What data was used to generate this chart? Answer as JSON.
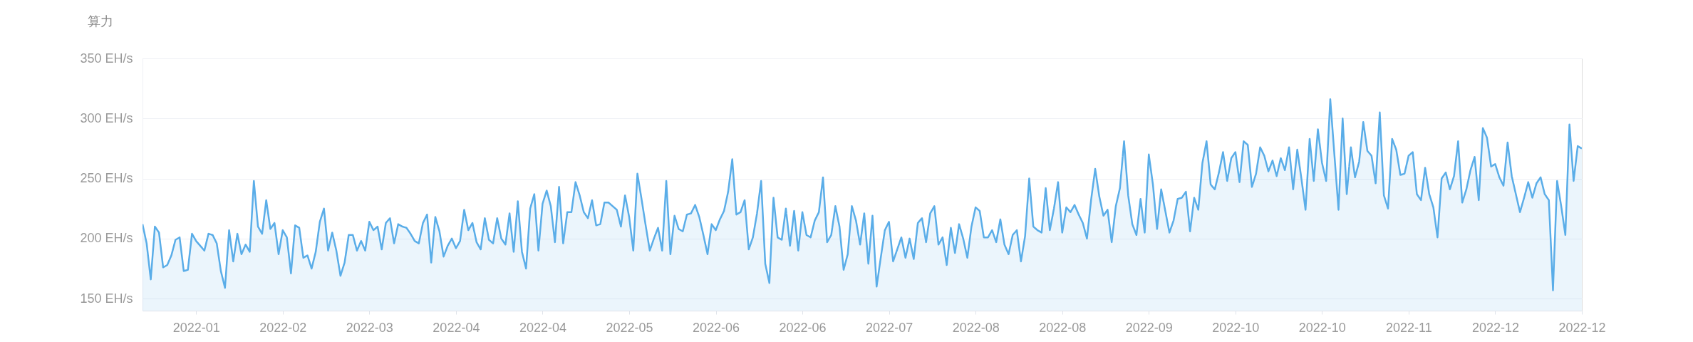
{
  "chart_data": {
    "type": "area",
    "ylabel": "算力",
    "grid": "y",
    "xlim": [
      "2021-12-19",
      "2022-12-03"
    ],
    "xticks": [
      {
        "value": "2022-01-01",
        "label": "2022-01"
      },
      {
        "value": "2022-01-22",
        "label": "2022-02"
      },
      {
        "value": "2022-02-12",
        "label": "2022-03"
      },
      {
        "value": "2022-03-05",
        "label": "2022-04"
      },
      {
        "value": "2022-03-26",
        "label": "2022-04"
      },
      {
        "value": "2022-04-16",
        "label": "2022-05"
      },
      {
        "value": "2022-05-07",
        "label": "2022-06"
      },
      {
        "value": "2022-05-28",
        "label": "2022-06"
      },
      {
        "value": "2022-06-18",
        "label": "2022-07"
      },
      {
        "value": "2022-07-09",
        "label": "2022-08"
      },
      {
        "value": "2022-07-30",
        "label": "2022-08"
      },
      {
        "value": "2022-08-20",
        "label": "2022-09"
      },
      {
        "value": "2022-09-10",
        "label": "2022-10"
      },
      {
        "value": "2022-10-01",
        "label": "2022-10"
      },
      {
        "value": "2022-10-22",
        "label": "2022-11"
      },
      {
        "value": "2022-11-12",
        "label": "2022-12"
      },
      {
        "value": "2022-12-03",
        "label": "2022-12"
      }
    ],
    "ylim": [
      140,
      350
    ],
    "yticks": [
      {
        "value": 150,
        "label": "150 EH/s"
      },
      {
        "value": 200,
        "label": "200 EH/s"
      },
      {
        "value": 250,
        "label": "250 EH/s"
      },
      {
        "value": 300,
        "label": "300 EH/s"
      },
      {
        "value": 350,
        "label": "350 EH/s"
      }
    ],
    "series": [
      {
        "color": "#5aade8",
        "x": [
          "2021-12-19",
          "2021-12-20",
          "2021-12-21",
          "2021-12-22",
          "2021-12-23",
          "2021-12-24",
          "2021-12-25",
          "2021-12-26",
          "2021-12-27",
          "2021-12-28",
          "2021-12-29",
          "2021-12-30",
          "2021-12-31",
          "2022-01-01",
          "2022-01-02",
          "2022-01-03",
          "2022-01-04",
          "2022-01-05",
          "2022-01-06",
          "2022-01-07",
          "2022-01-08",
          "2022-01-09",
          "2022-01-10",
          "2022-01-11",
          "2022-01-12",
          "2022-01-13",
          "2022-01-14",
          "2022-01-15",
          "2022-01-16",
          "2022-01-17",
          "2022-01-18",
          "2022-01-19",
          "2022-01-20",
          "2022-01-21",
          "2022-01-22",
          "2022-01-23",
          "2022-01-24",
          "2022-01-25",
          "2022-01-26",
          "2022-01-27",
          "2022-01-28",
          "2022-01-29",
          "2022-01-30",
          "2022-01-31",
          "2022-02-01",
          "2022-02-02",
          "2022-02-03",
          "2022-02-04",
          "2022-02-05",
          "2022-02-06",
          "2022-02-07",
          "2022-02-08",
          "2022-02-09",
          "2022-02-10",
          "2022-02-11",
          "2022-02-12",
          "2022-02-13",
          "2022-02-14",
          "2022-02-15",
          "2022-02-16",
          "2022-02-17",
          "2022-02-18",
          "2022-02-19",
          "2022-02-20",
          "2022-02-21",
          "2022-02-22",
          "2022-02-23",
          "2022-02-24",
          "2022-02-25",
          "2022-02-26",
          "2022-02-27",
          "2022-02-28",
          "2022-03-01",
          "2022-03-02",
          "2022-03-03",
          "2022-03-04",
          "2022-03-05",
          "2022-03-06",
          "2022-03-07",
          "2022-03-08",
          "2022-03-09",
          "2022-03-10",
          "2022-03-11",
          "2022-03-12",
          "2022-03-13",
          "2022-03-14",
          "2022-03-15",
          "2022-03-16",
          "2022-03-17",
          "2022-03-18",
          "2022-03-19",
          "2022-03-20",
          "2022-03-21",
          "2022-03-22",
          "2022-03-23",
          "2022-03-24",
          "2022-03-25",
          "2022-03-26",
          "2022-03-27",
          "2022-03-28",
          "2022-03-29",
          "2022-03-30",
          "2022-03-31",
          "2022-04-01",
          "2022-04-02",
          "2022-04-03",
          "2022-04-04",
          "2022-04-05",
          "2022-04-06",
          "2022-04-07",
          "2022-04-08",
          "2022-04-09",
          "2022-04-10",
          "2022-04-11",
          "2022-04-12",
          "2022-04-13",
          "2022-04-14",
          "2022-04-15",
          "2022-04-16",
          "2022-04-17",
          "2022-04-18",
          "2022-04-19",
          "2022-04-20",
          "2022-04-21",
          "2022-04-22",
          "2022-04-23",
          "2022-04-24",
          "2022-04-25",
          "2022-04-26",
          "2022-04-27",
          "2022-04-28",
          "2022-04-29",
          "2022-04-30",
          "2022-05-01",
          "2022-05-02",
          "2022-05-03",
          "2022-05-04",
          "2022-05-05",
          "2022-05-06",
          "2022-05-07",
          "2022-05-08",
          "2022-05-09",
          "2022-05-10",
          "2022-05-11",
          "2022-05-12",
          "2022-05-13",
          "2022-05-14",
          "2022-05-15",
          "2022-05-16",
          "2022-05-17",
          "2022-05-18",
          "2022-05-19",
          "2022-05-20",
          "2022-05-21",
          "2022-05-22",
          "2022-05-23",
          "2022-05-24",
          "2022-05-25",
          "2022-05-26",
          "2022-05-27",
          "2022-05-28",
          "2022-05-29",
          "2022-05-30",
          "2022-05-31",
          "2022-06-01",
          "2022-06-02",
          "2022-06-03",
          "2022-06-04",
          "2022-06-05",
          "2022-06-06",
          "2022-06-07",
          "2022-06-08",
          "2022-06-09",
          "2022-06-10",
          "2022-06-11",
          "2022-06-12",
          "2022-06-13",
          "2022-06-14",
          "2022-06-15",
          "2022-06-16",
          "2022-06-17",
          "2022-06-18",
          "2022-06-19",
          "2022-06-20",
          "2022-06-21",
          "2022-06-22",
          "2022-06-23",
          "2022-06-24",
          "2022-06-25",
          "2022-06-26",
          "2022-06-27",
          "2022-06-28",
          "2022-06-29",
          "2022-06-30",
          "2022-07-01",
          "2022-07-02",
          "2022-07-03",
          "2022-07-04",
          "2022-07-05",
          "2022-07-06",
          "2022-07-07",
          "2022-07-08",
          "2022-07-09",
          "2022-07-10",
          "2022-07-11",
          "2022-07-12",
          "2022-07-13",
          "2022-07-14",
          "2022-07-15",
          "2022-07-16",
          "2022-07-17",
          "2022-07-18",
          "2022-07-19",
          "2022-07-20",
          "2022-07-21",
          "2022-07-22",
          "2022-07-23",
          "2022-07-24",
          "2022-07-25",
          "2022-07-26",
          "2022-07-27",
          "2022-07-28",
          "2022-07-29",
          "2022-07-30",
          "2022-07-31",
          "2022-08-01",
          "2022-08-02",
          "2022-08-03",
          "2022-08-04",
          "2022-08-05",
          "2022-08-06",
          "2022-08-07",
          "2022-08-08",
          "2022-08-09",
          "2022-08-10",
          "2022-08-11",
          "2022-08-12",
          "2022-08-13",
          "2022-08-14",
          "2022-08-15",
          "2022-08-16",
          "2022-08-17",
          "2022-08-18",
          "2022-08-19",
          "2022-08-20",
          "2022-08-21",
          "2022-08-22",
          "2022-08-23",
          "2022-08-24",
          "2022-08-25",
          "2022-08-26",
          "2022-08-27",
          "2022-08-28",
          "2022-08-29",
          "2022-08-30",
          "2022-08-31",
          "2022-09-01",
          "2022-09-02",
          "2022-09-03",
          "2022-09-04",
          "2022-09-05",
          "2022-09-06",
          "2022-09-07",
          "2022-09-08",
          "2022-09-09",
          "2022-09-10",
          "2022-09-11",
          "2022-09-12",
          "2022-09-13",
          "2022-09-14",
          "2022-09-15",
          "2022-09-16",
          "2022-09-17",
          "2022-09-18",
          "2022-09-19",
          "2022-09-20",
          "2022-09-21",
          "2022-09-22",
          "2022-09-23",
          "2022-09-24",
          "2022-09-25",
          "2022-09-26",
          "2022-09-27",
          "2022-09-28",
          "2022-09-29",
          "2022-09-30",
          "2022-10-01",
          "2022-10-02",
          "2022-10-03",
          "2022-10-04",
          "2022-10-05",
          "2022-10-06",
          "2022-10-07",
          "2022-10-08",
          "2022-10-09",
          "2022-10-10",
          "2022-10-11",
          "2022-10-12",
          "2022-10-13",
          "2022-10-14",
          "2022-10-15",
          "2022-10-16",
          "2022-10-17",
          "2022-10-18",
          "2022-10-19",
          "2022-10-20",
          "2022-10-21",
          "2022-10-22",
          "2022-10-23",
          "2022-10-24",
          "2022-10-25",
          "2022-10-26",
          "2022-10-27",
          "2022-10-28",
          "2022-10-29",
          "2022-10-30",
          "2022-10-31",
          "2022-11-01",
          "2022-11-02",
          "2022-11-03",
          "2022-11-04",
          "2022-11-05",
          "2022-11-06",
          "2022-11-07",
          "2022-11-08",
          "2022-11-09",
          "2022-11-10",
          "2022-11-11",
          "2022-11-12",
          "2022-11-13",
          "2022-11-14",
          "2022-11-15",
          "2022-11-16",
          "2022-11-17",
          "2022-11-18",
          "2022-11-19",
          "2022-11-20",
          "2022-11-21",
          "2022-11-22",
          "2022-11-23",
          "2022-11-24",
          "2022-11-25",
          "2022-11-26",
          "2022-11-27",
          "2022-11-28",
          "2022-11-29",
          "2022-11-30",
          "2022-12-01",
          "2022-12-02",
          "2022-12-03"
        ],
        "values": [
          212,
          196,
          166,
          210,
          205,
          176,
          178,
          186,
          199,
          201,
          173,
          174,
          204,
          198,
          194,
          190,
          204,
          203,
          196,
          173,
          159,
          207,
          181,
          204,
          187,
          195,
          189,
          248,
          210,
          204,
          232,
          208,
          213,
          187,
          207,
          201,
          171,
          211,
          209,
          184,
          186,
          175,
          189,
          214,
          225,
          190,
          205,
          190,
          169,
          180,
          203,
          203,
          190,
          198,
          190,
          214,
          207,
          210,
          191,
          213,
          217,
          196,
          212,
          210,
          209,
          204,
          198,
          196,
          213,
          220,
          180,
          218,
          206,
          185,
          194,
          200,
          192,
          198,
          224,
          207,
          213,
          197,
          191,
          217,
          199,
          196,
          217,
          200,
          195,
          221,
          189,
          231,
          189,
          175,
          225,
          237,
          190,
          229,
          240,
          227,
          197,
          243,
          196,
          222,
          222,
          247,
          236,
          222,
          217,
          232,
          211,
          212,
          230,
          230,
          227,
          224,
          210,
          236,
          218,
          190,
          254,
          233,
          211,
          190,
          200,
          209,
          190,
          248,
          187,
          219,
          208,
          206,
          220,
          221,
          228,
          218,
          203,
          187,
          212,
          207,
          216,
          223,
          239,
          266,
          220,
          222,
          232,
          191,
          201,
          221,
          248,
          179,
          163,
          234,
          201,
          199,
          225,
          194,
          223,
          190,
          222,
          203,
          201,
          215,
          222,
          251,
          197,
          203,
          227,
          210,
          174,
          187,
          227,
          215,
          195,
          221,
          179,
          219,
          160,
          184,
          207,
          214,
          181,
          191,
          201,
          184,
          200,
          183,
          213,
          217,
          197,
          221,
          227,
          195,
          201,
          178,
          209,
          188,
          212,
          200,
          184,
          210,
          226,
          223,
          201,
          201,
          207,
          197,
          216,
          195,
          187,
          203,
          207,
          181,
          202,
          250,
          210,
          207,
          205,
          242,
          207,
          225,
          247,
          205,
          226,
          222,
          228,
          220,
          213,
          200,
          232,
          258,
          235,
          219,
          224,
          197,
          227,
          242,
          281,
          236,
          212,
          203,
          233,
          205,
          270,
          245,
          208,
          241,
          223,
          205,
          215,
          233,
          234,
          239,
          206,
          234,
          224,
          263,
          281,
          245,
          241,
          255,
          272,
          248,
          267,
          272,
          247,
          281,
          278,
          243,
          254,
          276,
          269,
          256,
          265,
          252,
          267,
          257,
          276,
          241,
          274,
          250,
          224,
          283,
          248,
          291,
          263,
          248,
          316,
          270,
          224,
          300,
          237,
          276,
          251,
          264,
          297,
          273,
          269,
          246,
          305,
          236,
          225,
          283,
          274,
          253,
          254,
          269,
          272,
          237,
          232,
          259,
          237,
          226,
          201,
          250,
          255,
          241,
          252,
          281,
          230,
          241,
          257,
          268,
          232,
          292,
          284,
          260,
          262,
          251,
          244,
          280,
          252,
          237,
          222,
          234,
          247,
          234,
          246,
          251,
          237,
          232,
          157,
          248,
          227,
          203,
          295,
          248,
          277,
          275
        ]
      }
    ]
  }
}
